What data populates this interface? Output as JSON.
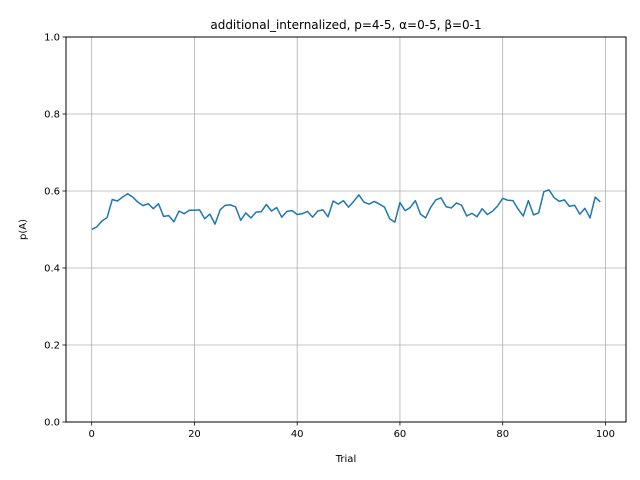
{
  "chart_data": {
    "type": "line",
    "title": "additional_internalized, p=4-5, α=0-5, β=0-1",
    "xlabel": "Trial",
    "ylabel": "p(A)",
    "xlim": [
      -5,
      104
    ],
    "ylim": [
      0.0,
      1.0
    ],
    "xticks": [
      0,
      20,
      40,
      60,
      80,
      100
    ],
    "yticks": [
      0.0,
      0.2,
      0.4,
      0.6,
      0.8,
      1.0
    ],
    "xtick_labels": [
      "0",
      "20",
      "40",
      "60",
      "80",
      "100"
    ],
    "ytick_labels": [
      "0.0",
      "0.2",
      "0.4",
      "0.6",
      "0.8",
      "1.0"
    ],
    "grid": true,
    "line_color": "#1f77b4",
    "series": [
      {
        "x": [
          0,
          1,
          2,
          3,
          4,
          5,
          6,
          7,
          8,
          9,
          10,
          11,
          12,
          13,
          14,
          15,
          16,
          17,
          18,
          19,
          20,
          21,
          22,
          23,
          24,
          25,
          26,
          27,
          28,
          29,
          30,
          31,
          32,
          33,
          34,
          35,
          36,
          37,
          38,
          39,
          40,
          41,
          42,
          43,
          44,
          45,
          46,
          47,
          48,
          49,
          50,
          51,
          52,
          53,
          54,
          55,
          56,
          57,
          58,
          59,
          60,
          61,
          62,
          63,
          64,
          65,
          66,
          67,
          68,
          69,
          70,
          71,
          72,
          73,
          74,
          75,
          76,
          77,
          78,
          79,
          80,
          81,
          82,
          83,
          84,
          85,
          86,
          87,
          88,
          89,
          90,
          91,
          92,
          93,
          94,
          95,
          96,
          97,
          98,
          99
        ],
        "values": [
          0.5,
          0.507,
          0.522,
          0.531,
          0.578,
          0.574,
          0.584,
          0.593,
          0.584,
          0.571,
          0.562,
          0.567,
          0.554,
          0.567,
          0.534,
          0.536,
          0.52,
          0.548,
          0.541,
          0.55,
          0.55,
          0.551,
          0.528,
          0.54,
          0.514,
          0.551,
          0.563,
          0.564,
          0.559,
          0.524,
          0.543,
          0.53,
          0.545,
          0.546,
          0.565,
          0.548,
          0.557,
          0.532,
          0.547,
          0.549,
          0.539,
          0.541,
          0.547,
          0.532,
          0.548,
          0.551,
          0.533,
          0.574,
          0.566,
          0.575,
          0.558,
          0.573,
          0.59,
          0.571,
          0.566,
          0.573,
          0.566,
          0.558,
          0.528,
          0.519,
          0.57,
          0.549,
          0.557,
          0.575,
          0.54,
          0.53,
          0.558,
          0.577,
          0.582,
          0.559,
          0.556,
          0.569,
          0.563,
          0.535,
          0.542,
          0.533,
          0.554,
          0.539,
          0.547,
          0.561,
          0.581,
          0.576,
          0.575,
          0.553,
          0.535,
          0.575,
          0.538,
          0.543,
          0.598,
          0.603,
          0.583,
          0.573,
          0.577,
          0.56,
          0.563,
          0.54,
          0.555,
          0.53,
          0.584,
          0.572
        ]
      }
    ]
  }
}
